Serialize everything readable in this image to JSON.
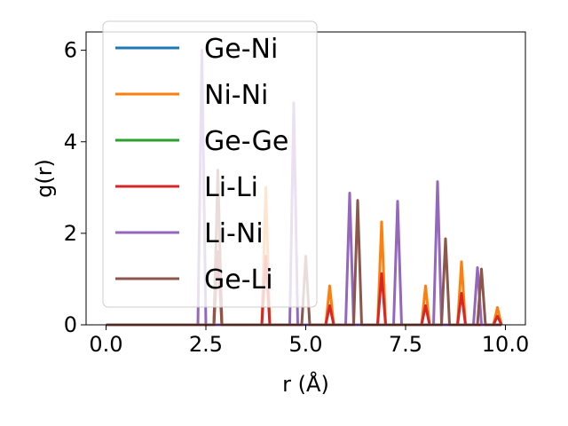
{
  "chart_data": {
    "type": "line",
    "xlabel": "r (Å)",
    "ylabel": "g(r)",
    "xlim": [
      -0.5,
      10.5
    ],
    "ylim": [
      0,
      6.4
    ],
    "xticks": [
      0.0,
      2.5,
      5.0,
      7.5,
      10.0
    ],
    "xtick_labels": [
      "0.0",
      "2.5",
      "5.0",
      "7.5",
      "10.0"
    ],
    "yticks": [
      0,
      2,
      4,
      6
    ],
    "ytick_labels": [
      "0",
      "2",
      "4",
      "6"
    ],
    "grid": false,
    "legend_position": "top-left",
    "peak_halfwidth": 0.1,
    "series": [
      {
        "name": "Ge-Ni",
        "color": "#1f77b4",
        "peaks": []
      },
      {
        "name": "Ni-Ni",
        "color": "#ff7f0e",
        "peaks": [
          [
            2.8,
            3.2
          ],
          [
            4.0,
            3.0
          ],
          [
            5.6,
            0.85
          ],
          [
            6.9,
            2.25
          ],
          [
            8.0,
            0.85
          ],
          [
            8.9,
            1.38
          ],
          [
            9.8,
            0.38
          ]
        ]
      },
      {
        "name": "Ge-Ge",
        "color": "#2ca02c",
        "peaks": []
      },
      {
        "name": "Li-Li",
        "color": "#d62728",
        "peaks": [
          [
            2.8,
            1.6
          ],
          [
            4.0,
            1.5
          ],
          [
            5.6,
            0.42
          ],
          [
            6.9,
            1.12
          ],
          [
            8.0,
            0.42
          ],
          [
            8.9,
            0.69
          ],
          [
            9.8,
            0.19
          ]
        ]
      },
      {
        "name": "Li-Ni",
        "color": "#9467bd",
        "peaks": [
          [
            2.4,
            6.0
          ],
          [
            4.7,
            4.85
          ],
          [
            6.1,
            2.88
          ],
          [
            7.3,
            2.7
          ],
          [
            8.3,
            3.13
          ],
          [
            9.3,
            1.25
          ]
        ]
      },
      {
        "name": "Ge-Li",
        "color": "#8c564b",
        "peaks": [
          [
            2.8,
            3.38
          ],
          [
            5.0,
            1.5
          ],
          [
            6.3,
            2.72
          ],
          [
            8.5,
            1.88
          ],
          [
            9.4,
            1.22
          ]
        ]
      }
    ]
  }
}
